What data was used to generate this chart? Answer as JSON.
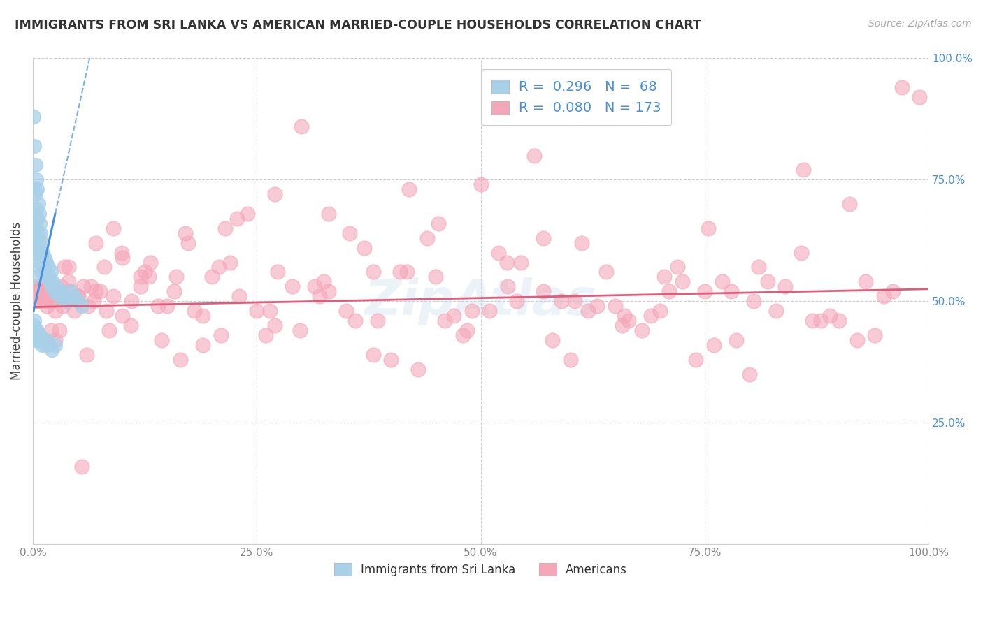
{
  "title": "IMMIGRANTS FROM SRI LANKA VS AMERICAN MARRIED-COUPLE HOUSEHOLDS CORRELATION CHART",
  "source": "Source: ZipAtlas.com",
  "ylabel": "Married-couple Households",
  "xlim": [
    0,
    1.0
  ],
  "ylim": [
    0,
    1.0
  ],
  "xticks": [
    0.0,
    0.25,
    0.5,
    0.75,
    1.0
  ],
  "yticks": [
    0.0,
    0.25,
    0.5,
    0.75,
    1.0
  ],
  "xticklabels": [
    "0.0%",
    "25.0%",
    "50.0%",
    "75.0%",
    "100.0%"
  ],
  "yticklabels": [
    "",
    "25.0%",
    "50.0%",
    "75.0%",
    "100.0%"
  ],
  "legend_R_blue": "0.296",
  "legend_N_blue": "68",
  "legend_R_pink": "0.080",
  "legend_N_pink": "173",
  "blue_color": "#a8d0e8",
  "pink_color": "#f4a7b9",
  "blue_line_color": "#4a90d9",
  "pink_line_color": "#e05c7a",
  "watermark": "ZipAtlas",
  "background_color": "#ffffff",
  "grid_color": "#cccccc",
  "blue_scatter_x": [
    0.001,
    0.001,
    0.001,
    0.002,
    0.002,
    0.002,
    0.003,
    0.003,
    0.003,
    0.003,
    0.004,
    0.004,
    0.004,
    0.005,
    0.005,
    0.005,
    0.006,
    0.006,
    0.007,
    0.007,
    0.007,
    0.008,
    0.008,
    0.009,
    0.009,
    0.01,
    0.01,
    0.011,
    0.012,
    0.013,
    0.014,
    0.015,
    0.016,
    0.017,
    0.018,
    0.019,
    0.02,
    0.021,
    0.022,
    0.024,
    0.026,
    0.028,
    0.03,
    0.032,
    0.035,
    0.038,
    0.042,
    0.046,
    0.05,
    0.055,
    0.001,
    0.001,
    0.002,
    0.002,
    0.003,
    0.004,
    0.005,
    0.006,
    0.007,
    0.008,
    0.009,
    0.01,
    0.012,
    0.014,
    0.016,
    0.018,
    0.021,
    0.025
  ],
  "blue_scatter_y": [
    0.88,
    0.62,
    0.55,
    0.82,
    0.73,
    0.65,
    0.78,
    0.72,
    0.66,
    0.6,
    0.75,
    0.69,
    0.63,
    0.73,
    0.67,
    0.61,
    0.7,
    0.64,
    0.68,
    0.62,
    0.57,
    0.66,
    0.6,
    0.64,
    0.58,
    0.62,
    0.56,
    0.6,
    0.57,
    0.59,
    0.56,
    0.58,
    0.55,
    0.57,
    0.55,
    0.54,
    0.56,
    0.53,
    0.54,
    0.52,
    0.53,
    0.52,
    0.51,
    0.52,
    0.51,
    0.5,
    0.52,
    0.51,
    0.5,
    0.49,
    0.45,
    0.42,
    0.46,
    0.43,
    0.44,
    0.43,
    0.44,
    0.43,
    0.42,
    0.43,
    0.42,
    0.41,
    0.42,
    0.41,
    0.42,
    0.41,
    0.4,
    0.41
  ],
  "pink_scatter_x": [
    0.001,
    0.002,
    0.003,
    0.004,
    0.005,
    0.006,
    0.007,
    0.008,
    0.009,
    0.01,
    0.012,
    0.014,
    0.016,
    0.018,
    0.02,
    0.022,
    0.025,
    0.028,
    0.031,
    0.034,
    0.038,
    0.042,
    0.046,
    0.051,
    0.056,
    0.062,
    0.068,
    0.075,
    0.082,
    0.09,
    0.099,
    0.109,
    0.12,
    0.131,
    0.144,
    0.158,
    0.173,
    0.19,
    0.208,
    0.228,
    0.25,
    0.273,
    0.298,
    0.325,
    0.354,
    0.385,
    0.418,
    0.453,
    0.49,
    0.529,
    0.57,
    0.613,
    0.658,
    0.705,
    0.754,
    0.805,
    0.858,
    0.912,
    0.96,
    0.99,
    0.05,
    0.08,
    0.12,
    0.17,
    0.22,
    0.27,
    0.33,
    0.38,
    0.44,
    0.5,
    0.56,
    0.62,
    0.68,
    0.74,
    0.8,
    0.86,
    0.92,
    0.97,
    0.04,
    0.07,
    0.1,
    0.14,
    0.19,
    0.24,
    0.3,
    0.36,
    0.42,
    0.48,
    0.54,
    0.6,
    0.66,
    0.72,
    0.78,
    0.84,
    0.9,
    0.03,
    0.06,
    0.09,
    0.13,
    0.18,
    0.23,
    0.29,
    0.35,
    0.41,
    0.47,
    0.53,
    0.59,
    0.65,
    0.71,
    0.77,
    0.83,
    0.89,
    0.95,
    0.02,
    0.04,
    0.07,
    0.11,
    0.16,
    0.21,
    0.27,
    0.33,
    0.4,
    0.46,
    0.52,
    0.58,
    0.64,
    0.7,
    0.76,
    0.82,
    0.88,
    0.94,
    0.015,
    0.035,
    0.065,
    0.1,
    0.15,
    0.2,
    0.26,
    0.32,
    0.38,
    0.45,
    0.51,
    0.57,
    0.63,
    0.69,
    0.75,
    0.81,
    0.87,
    0.93,
    0.025,
    0.055,
    0.085,
    0.125,
    0.165,
    0.215,
    0.265,
    0.315,
    0.37,
    0.43,
    0.485,
    0.545,
    0.605,
    0.665,
    0.725,
    0.785
  ],
  "pink_scatter_y": [
    0.52,
    0.51,
    0.53,
    0.5,
    0.52,
    0.51,
    0.53,
    0.5,
    0.52,
    0.51,
    0.53,
    0.5,
    0.49,
    0.51,
    0.5,
    0.52,
    0.48,
    0.51,
    0.53,
    0.49,
    0.5,
    0.52,
    0.48,
    0.51,
    0.53,
    0.49,
    0.5,
    0.52,
    0.48,
    0.51,
    0.6,
    0.45,
    0.55,
    0.58,
    0.42,
    0.52,
    0.62,
    0.47,
    0.57,
    0.67,
    0.48,
    0.56,
    0.44,
    0.54,
    0.64,
    0.46,
    0.56,
    0.66,
    0.48,
    0.58,
    0.52,
    0.62,
    0.45,
    0.55,
    0.65,
    0.5,
    0.6,
    0.7,
    0.52,
    0.92,
    0.51,
    0.57,
    0.53,
    0.64,
    0.58,
    0.72,
    0.68,
    0.56,
    0.63,
    0.74,
    0.8,
    0.48,
    0.44,
    0.38,
    0.35,
    0.77,
    0.42,
    0.94,
    0.54,
    0.62,
    0.59,
    0.49,
    0.41,
    0.68,
    0.86,
    0.46,
    0.73,
    0.43,
    0.5,
    0.38,
    0.47,
    0.57,
    0.52,
    0.53,
    0.46,
    0.44,
    0.39,
    0.65,
    0.55,
    0.48,
    0.51,
    0.53,
    0.48,
    0.56,
    0.47,
    0.53,
    0.5,
    0.49,
    0.52,
    0.54,
    0.48,
    0.47,
    0.51,
    0.44,
    0.57,
    0.52,
    0.5,
    0.55,
    0.43,
    0.45,
    0.52,
    0.38,
    0.46,
    0.6,
    0.42,
    0.56,
    0.48,
    0.41,
    0.54,
    0.46,
    0.43,
    0.51,
    0.57,
    0.53,
    0.47,
    0.49,
    0.55,
    0.43,
    0.51,
    0.39,
    0.55,
    0.48,
    0.63,
    0.49,
    0.47,
    0.52,
    0.57,
    0.46,
    0.54,
    0.42,
    0.16,
    0.44,
    0.56,
    0.38,
    0.65,
    0.48,
    0.53,
    0.61,
    0.36,
    0.44,
    0.58,
    0.5,
    0.46,
    0.54,
    0.42
  ]
}
